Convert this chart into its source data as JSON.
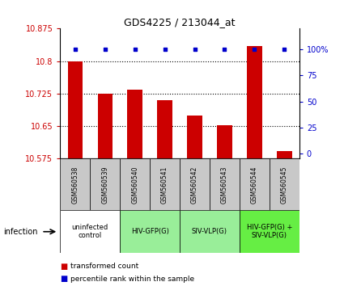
{
  "title": "GDS4225 / 213044_at",
  "samples": [
    "GSM560538",
    "GSM560539",
    "GSM560540",
    "GSM560541",
    "GSM560542",
    "GSM560543",
    "GSM560544",
    "GSM560545"
  ],
  "bar_values": [
    10.8,
    10.725,
    10.735,
    10.71,
    10.675,
    10.653,
    10.835,
    10.593
  ],
  "percentile_values": [
    100,
    100,
    100,
    100,
    100,
    100,
    100,
    100
  ],
  "ylim": [
    10.575,
    10.875
  ],
  "yticks": [
    10.575,
    10.65,
    10.725,
    10.8,
    10.875
  ],
  "ytick_labels": [
    "10.575",
    "10.65",
    "10.725",
    "10.8",
    "10.875"
  ],
  "y2ticks": [
    0,
    25,
    50,
    75,
    100
  ],
  "y2tick_labels": [
    "0",
    "25",
    "50",
    "75",
    "100%"
  ],
  "bar_color": "#cc0000",
  "percentile_color": "#0000cc",
  "bar_width": 0.5,
  "groups": [
    {
      "label": "uninfected\ncontrol",
      "indices": [
        0,
        1
      ],
      "color": "#ffffff"
    },
    {
      "label": "HIV-GFP(G)",
      "indices": [
        2,
        3
      ],
      "color": "#99ee99"
    },
    {
      "label": "SIV-VLP(G)",
      "indices": [
        4,
        5
      ],
      "color": "#99ee99"
    },
    {
      "label": "HIV-GFP(G) +\nSIV-VLP(G)",
      "indices": [
        6,
        7
      ],
      "color": "#66ee44"
    }
  ],
  "bar_color_red": "#cc0000",
  "percentile_color_blue": "#0000cc",
  "legend_red_label": "transformed count",
  "legend_blue_label": "percentile rank within the sample",
  "infection_label": "infection",
  "sample_box_color": "#c8c8c8",
  "bg_color": "#ffffff"
}
